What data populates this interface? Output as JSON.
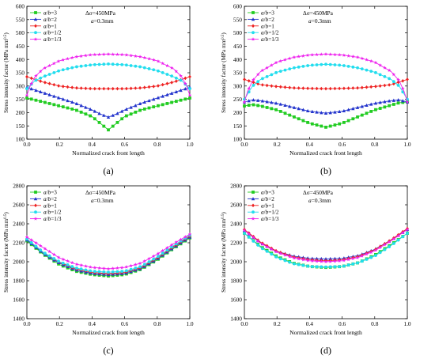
{
  "chart_data": [
    {
      "type": "line",
      "panel_label": "(a)",
      "xlabel": "Normalized crack front length",
      "ylabel": "Stress intensity factor (MPa mm",
      "ylabel_sup": "0.5",
      "ylabel_tail": ")",
      "xlim": [
        0,
        1
      ],
      "ylim": [
        100,
        600
      ],
      "xticks": [
        0.0,
        0.2,
        0.4,
        0.6,
        0.8,
        1.0
      ],
      "yticks": [
        100,
        150,
        200,
        250,
        300,
        350,
        400,
        450,
        500,
        550,
        600
      ],
      "annotation": {
        "line1": "Δσ=450MPa",
        "line2": "a=0.3mm"
      },
      "legend_position": "top-left",
      "series": [
        {
          "name": "a/b=3",
          "color": "#22cc22",
          "marker": "square",
          "x": [
            0,
            0.1,
            0.2,
            0.3,
            0.4,
            0.45,
            0.5,
            0.55,
            0.6,
            0.7,
            0.8,
            0.9,
            1.0
          ],
          "y": [
            255,
            240,
            225,
            210,
            185,
            160,
            135,
            160,
            185,
            210,
            225,
            240,
            255
          ]
        },
        {
          "name": "a/b=2",
          "color": "#2233cc",
          "marker": "triangle",
          "x": [
            0,
            0.1,
            0.2,
            0.3,
            0.4,
            0.45,
            0.5,
            0.55,
            0.6,
            0.7,
            0.8,
            0.9,
            1.0
          ],
          "y": [
            295,
            275,
            255,
            235,
            210,
            195,
            183,
            195,
            210,
            235,
            255,
            275,
            295
          ]
        },
        {
          "name": "a/b=1",
          "color": "#ee2222",
          "marker": "diamond",
          "x": [
            0,
            0.1,
            0.2,
            0.3,
            0.4,
            0.5,
            0.6,
            0.7,
            0.8,
            0.9,
            1.0
          ],
          "y": [
            335,
            315,
            300,
            293,
            290,
            290,
            290,
            293,
            300,
            315,
            335
          ]
        },
        {
          "name": "a/b=1/2",
          "color": "#22ddee",
          "marker": "circle",
          "x": [
            0,
            0.05,
            0.1,
            0.2,
            0.3,
            0.4,
            0.5,
            0.6,
            0.7,
            0.8,
            0.9,
            0.95,
            1.0
          ],
          "y": [
            290,
            320,
            335,
            358,
            372,
            380,
            383,
            380,
            372,
            358,
            335,
            320,
            290
          ]
        },
        {
          "name": "a/b=1/3",
          "color": "#ee22ee",
          "marker": "star",
          "x": [
            0,
            0.02,
            0.05,
            0.1,
            0.2,
            0.3,
            0.4,
            0.5,
            0.6,
            0.7,
            0.8,
            0.9,
            0.95,
            0.98,
            1.0
          ],
          "y": [
            265,
            300,
            335,
            365,
            395,
            410,
            418,
            420,
            418,
            410,
            395,
            365,
            335,
            300,
            265
          ]
        }
      ]
    },
    {
      "type": "line",
      "panel_label": "(b)",
      "xlabel": "Normalized crack front length",
      "ylabel": "Stress intensity factor (MPa mm",
      "ylabel_sup": "0.5",
      "ylabel_tail": ")",
      "xlim": [
        0,
        1
      ],
      "ylim": [
        100,
        600
      ],
      "xticks": [
        0.0,
        0.2,
        0.4,
        0.6,
        0.8,
        1.0
      ],
      "yticks": [
        100,
        150,
        200,
        250,
        300,
        350,
        400,
        450,
        500,
        550,
        600
      ],
      "annotation": {
        "line1": "Δσ=450MPa",
        "line2": "a=0.3mm"
      },
      "legend_position": "top-left",
      "series": [
        {
          "name": "a/b=3",
          "color": "#22cc22",
          "marker": "square",
          "x": [
            0,
            0.05,
            0.1,
            0.2,
            0.3,
            0.4,
            0.5,
            0.6,
            0.7,
            0.8,
            0.9,
            0.95,
            1.0
          ],
          "y": [
            225,
            230,
            225,
            210,
            185,
            160,
            145,
            160,
            185,
            210,
            228,
            237,
            240
          ]
        },
        {
          "name": "a/b=2",
          "color": "#2233cc",
          "marker": "triangle",
          "x": [
            0,
            0.05,
            0.1,
            0.2,
            0.3,
            0.4,
            0.5,
            0.6,
            0.7,
            0.8,
            0.9,
            0.95,
            1.0
          ],
          "y": [
            240,
            248,
            245,
            235,
            220,
            205,
            198,
            205,
            220,
            235,
            245,
            248,
            240
          ]
        },
        {
          "name": "a/b=1",
          "color": "#ee2222",
          "marker": "diamond",
          "x": [
            0,
            0.05,
            0.1,
            0.2,
            0.3,
            0.4,
            0.5,
            0.6,
            0.7,
            0.8,
            0.9,
            0.95,
            1.0
          ],
          "y": [
            325,
            315,
            305,
            298,
            293,
            291,
            290,
            291,
            293,
            298,
            305,
            315,
            325
          ]
        },
        {
          "name": "a/b=1/2",
          "color": "#22ddee",
          "marker": "circle",
          "x": [
            0,
            0.05,
            0.1,
            0.2,
            0.3,
            0.4,
            0.5,
            0.6,
            0.7,
            0.8,
            0.9,
            0.95,
            1.0
          ],
          "y": [
            250,
            300,
            325,
            352,
            368,
            378,
            382,
            378,
            368,
            352,
            325,
            300,
            250
          ]
        },
        {
          "name": "a/b=1/3",
          "color": "#ee22ee",
          "marker": "star",
          "x": [
            0,
            0.02,
            0.05,
            0.1,
            0.2,
            0.3,
            0.4,
            0.5,
            0.6,
            0.7,
            0.8,
            0.9,
            0.95,
            0.98,
            1.0
          ],
          "y": [
            240,
            280,
            320,
            355,
            390,
            408,
            417,
            420,
            417,
            408,
            390,
            355,
            320,
            280,
            240
          ]
        }
      ]
    },
    {
      "type": "line",
      "panel_label": "(c)",
      "xlabel": "Normalized crack front length",
      "ylabel": "Stress intensity factor (MPa mm",
      "ylabel_sup": "0.5",
      "ylabel_tail": ")",
      "xlim": [
        0,
        1
      ],
      "ylim": [
        1400,
        2800
      ],
      "xticks": [
        0.0,
        0.2,
        0.4,
        0.6,
        0.8,
        1.0
      ],
      "yticks": [
        1400,
        1600,
        1800,
        2000,
        2200,
        2400,
        2600,
        2800
      ],
      "annotation": {
        "line1": "Δσ=450MPa",
        "line2": "a=0.3mm"
      },
      "legend_position": "top-left",
      "series": [
        {
          "name": "a/b=3",
          "color": "#22cc22",
          "marker": "square",
          "x": [
            0,
            0.1,
            0.2,
            0.3,
            0.4,
            0.5,
            0.6,
            0.7,
            0.8,
            0.9,
            1.0
          ],
          "y": [
            2220,
            2080,
            1970,
            1900,
            1865,
            1850,
            1865,
            1920,
            2020,
            2140,
            2250
          ]
        },
        {
          "name": "a/b=2",
          "color": "#2233cc",
          "marker": "triangle",
          "x": [
            0,
            0.1,
            0.2,
            0.3,
            0.4,
            0.5,
            0.6,
            0.7,
            0.8,
            0.9,
            1.0
          ],
          "y": [
            2230,
            2090,
            1985,
            1915,
            1878,
            1865,
            1878,
            1930,
            2030,
            2150,
            2260
          ]
        },
        {
          "name": "a/b=1",
          "color": "#ee2222",
          "marker": "diamond",
          "x": [
            0,
            0.1,
            0.2,
            0.3,
            0.4,
            0.5,
            0.6,
            0.7,
            0.8,
            0.9,
            1.0
          ],
          "y": [
            2240,
            2100,
            1995,
            1925,
            1888,
            1875,
            1888,
            1940,
            2040,
            2160,
            2270
          ]
        },
        {
          "name": "a/b=1/2",
          "color": "#22ddee",
          "marker": "circle",
          "x": [
            0,
            0.1,
            0.2,
            0.3,
            0.4,
            0.5,
            0.6,
            0.7,
            0.8,
            0.9,
            1.0
          ],
          "y": [
            2240,
            2100,
            2000,
            1935,
            1900,
            1890,
            1900,
            1950,
            2050,
            2170,
            2280
          ]
        },
        {
          "name": "a/b=1/3",
          "color": "#ee22ee",
          "marker": "star",
          "x": [
            0,
            0.1,
            0.2,
            0.3,
            0.4,
            0.5,
            0.6,
            0.7,
            0.8,
            0.9,
            1.0
          ],
          "y": [
            2260,
            2150,
            2040,
            1975,
            1940,
            1925,
            1940,
            1985,
            2080,
            2190,
            2290
          ]
        }
      ]
    },
    {
      "type": "line",
      "panel_label": "(d)",
      "xlabel": "Normalized crack front length",
      "ylabel": "Stress intensity factor (MPa mm",
      "ylabel_sup": "0.5",
      "ylabel_tail": ")",
      "xlim": [
        0,
        1
      ],
      "ylim": [
        1400,
        2800
      ],
      "xticks": [
        0.0,
        0.2,
        0.4,
        0.6,
        0.8,
        1.0
      ],
      "yticks": [
        1400,
        1600,
        1800,
        2000,
        2200,
        2400,
        2600,
        2800
      ],
      "annotation": {
        "line1": "Δσ=450MPa",
        "line2": "a=0.3mm"
      },
      "legend_position": "top-left",
      "series": [
        {
          "name": "a/b=3",
          "color": "#22cc22",
          "marker": "square",
          "x": [
            0,
            0.1,
            0.2,
            0.3,
            0.4,
            0.5,
            0.6,
            0.7,
            0.8,
            0.9,
            1.0
          ],
          "y": [
            2300,
            2160,
            2055,
            1985,
            1950,
            1940,
            1950,
            1990,
            2070,
            2180,
            2300
          ]
        },
        {
          "name": "a/b=2",
          "color": "#2233cc",
          "marker": "triangle",
          "x": [
            0,
            0.1,
            0.2,
            0.3,
            0.4,
            0.5,
            0.6,
            0.7,
            0.8,
            0.9,
            1.0
          ],
          "y": [
            2330,
            2200,
            2110,
            2060,
            2035,
            2030,
            2035,
            2065,
            2130,
            2230,
            2340
          ]
        },
        {
          "name": "a/b=1",
          "color": "#ee2222",
          "marker": "diamond",
          "x": [
            0,
            0.1,
            0.2,
            0.3,
            0.4,
            0.5,
            0.6,
            0.7,
            0.8,
            0.9,
            1.0
          ],
          "y": [
            2340,
            2205,
            2110,
            2050,
            2020,
            2010,
            2020,
            2055,
            2125,
            2230,
            2350
          ]
        },
        {
          "name": "a/b=1/2",
          "color": "#22ddee",
          "marker": "circle",
          "x": [
            0,
            0.1,
            0.2,
            0.3,
            0.4,
            0.5,
            0.6,
            0.7,
            0.8,
            0.9,
            1.0
          ],
          "y": [
            2300,
            2150,
            2045,
            1980,
            1950,
            1945,
            1950,
            1990,
            2060,
            2170,
            2300
          ]
        },
        {
          "name": "a/b=1/3",
          "color": "#ee22ee",
          "marker": "star",
          "x": [
            0,
            0.1,
            0.2,
            0.3,
            0.4,
            0.5,
            0.6,
            0.7,
            0.8,
            0.9,
            1.0
          ],
          "y": [
            2330,
            2195,
            2100,
            2040,
            2010,
            2000,
            2010,
            2045,
            2115,
            2220,
            2340
          ]
        }
      ]
    }
  ]
}
